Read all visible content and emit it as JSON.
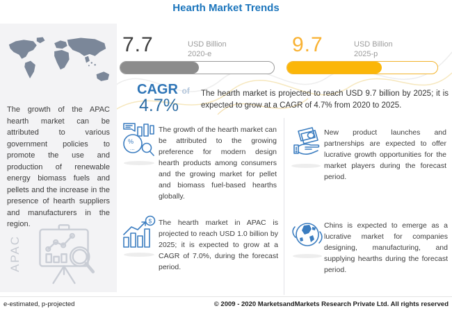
{
  "title": "Hearth Market Trends",
  "colors": {
    "title_blue": "#1b75bc",
    "cagr_blue": "#2d74b6",
    "icon_blue": "#3b7dc0",
    "bar_gray": "#8c8c8c",
    "bar_yellow": "#fbb608",
    "stat_yellow": "#f9b233",
    "sidebar_bg": "#f3f3f5",
    "map_slate": "#7b8799"
  },
  "chart_data": {
    "type": "bar",
    "categories": [
      "2020-e",
      "2025-p"
    ],
    "values": [
      7.7,
      9.7
    ],
    "unit": "USD Billion",
    "title": "Hearth Market Trends",
    "cagr_pct": 4.7,
    "bar_fill_pct": [
      51,
      63
    ],
    "apac_value_2025_usd_billion": 1.0,
    "apac_cagr_pct": 7.0
  },
  "sidebar": {
    "map_icon": "world-map-icon",
    "paragraph": "The growth of the APAC hearth market can be attributed to various government policies to promote the use and production of renewable energy biomass fuels and pellets and the increase in the presence of hearth suppliers and manufacturers in the region.",
    "region_label": "APAC",
    "analysis_icon": "chart-easel-magnifier-icon"
  },
  "stats": [
    {
      "value": "7.7",
      "unit": "USD Billion",
      "year": "2020-e",
      "fill_pct": 51
    },
    {
      "value": "9.7",
      "unit": "USD Billion",
      "year": "2025-p",
      "fill_pct": 63
    }
  ],
  "cagr": {
    "label": "CAGR",
    "of": "of",
    "value": "4.7%",
    "summary": "The hearth market is projected to reach USD 9.7 billion by 2025; it is expected to grow at a CAGR of 4.7% from 2020 to 2025."
  },
  "insights": [
    {
      "icon": "analytics-pie-magnifier-icon",
      "text": "The growth of the hearth market can be attributed to the growing preference for modern design hearth products among consumers and the growing market for pellet and biomass fuel-based hearths globally."
    },
    {
      "icon": "money-in-hand-icon",
      "text": "New product launches and partnerships are expected to offer lucrative growth opportunities for the market players during the forecast period."
    },
    {
      "icon": "growth-chart-dollar-icon",
      "text": "The hearth market in APAC is projected to reach USD 1.0 billion by 2025; it is expected to grow at a CAGR of 7.0%, during the forecast period."
    },
    {
      "icon": "globe-icon",
      "text": "Chins is expected to emerge as a lucrative market for companies designing, manufacturing, and supplying hearths during the forecast period."
    }
  ],
  "footer": {
    "left": "e-estimated, p-projected",
    "right": "© 2009 - 2020 MarketsandMarkets Research Private Ltd. All rights reserved"
  }
}
